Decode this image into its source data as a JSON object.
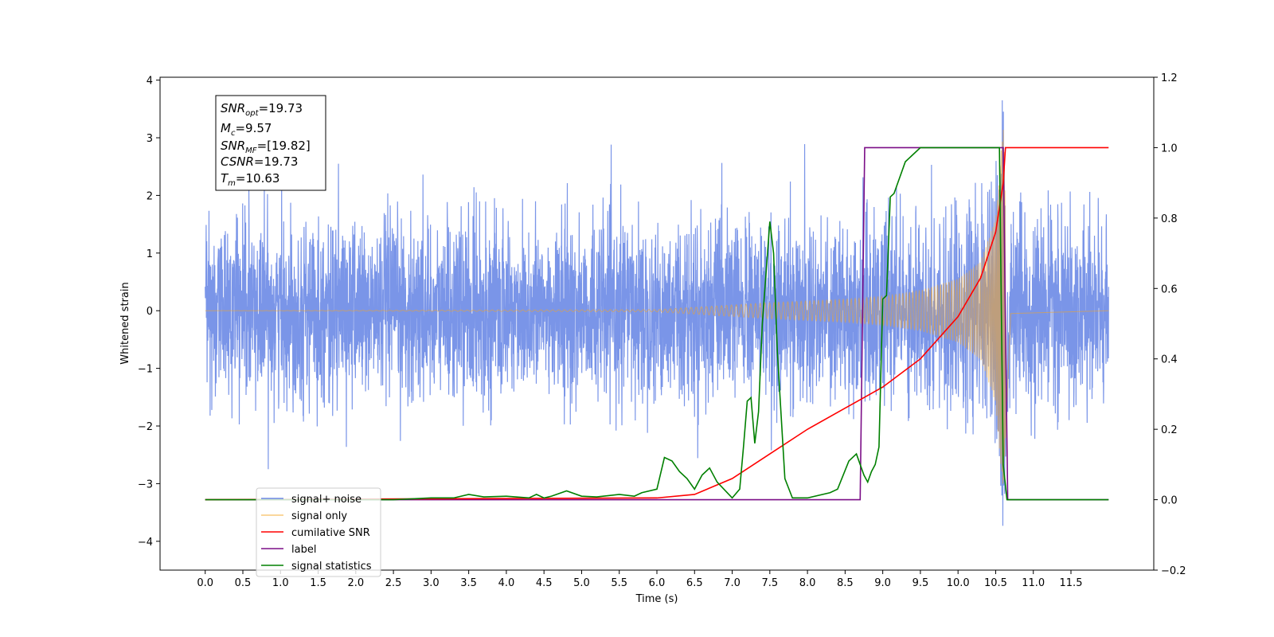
{
  "chart_data": {
    "type": "line",
    "xlabel": "Time (s)",
    "ylabel": "Whitened strain",
    "xlim": [
      -0.6,
      12.6
    ],
    "ylim": [
      -4.5,
      4.05
    ],
    "y2lim": [
      -0.2,
      1.2
    ],
    "x_ticks": [
      0.0,
      0.5,
      1.0,
      1.5,
      2.0,
      2.5,
      3.0,
      3.5,
      4.0,
      4.5,
      5.0,
      5.5,
      6.0,
      6.5,
      7.0,
      7.5,
      8.0,
      8.5,
      9.0,
      9.5,
      10.0,
      10.5,
      11.0,
      11.5
    ],
    "x_tick_labels": [
      "0.0",
      "0.5",
      "1.0",
      "1.5",
      "2.0",
      "2.5",
      "3.0",
      "3.5",
      "4.0",
      "4.5",
      "5.0",
      "5.5",
      "6.0",
      "6.5",
      "7.0",
      "7.5",
      "8.0",
      "8.5",
      "9.0",
      "9.5",
      "10.0",
      "10.5",
      "11.0",
      "11.5"
    ],
    "y_ticks": [
      4,
      3,
      2,
      1,
      0,
      -1,
      -2,
      -3,
      -4
    ],
    "y_tick_labels": [
      "4",
      "3",
      "2",
      "1",
      "0",
      "−1",
      "−2",
      "−3",
      "−4"
    ],
    "y2_ticks": [
      1.2,
      1.0,
      0.8,
      0.6,
      0.4,
      0.2,
      0.0,
      -0.2
    ],
    "y2_tick_labels": [
      "1.2",
      "1.0",
      "0.8",
      "0.6",
      "0.4",
      "0.2",
      "0.0",
      "−0.2"
    ],
    "legend_position": "lower-left",
    "series": [
      {
        "name": "signal+ noise",
        "color": "#6b8ae6",
        "axis": "left",
        "x_range": [
          0.0,
          12.0
        ],
        "noise_sigma": 0.75,
        "approx_y_range": [
          -4.1,
          3.65
        ]
      },
      {
        "name": "signal only",
        "color": "#f5a623",
        "axis": "left",
        "merger_time": 10.63,
        "envelope": [
          [
            0.0,
            0.0
          ],
          [
            6.0,
            0.02
          ],
          [
            6.5,
            0.06
          ],
          [
            7.0,
            0.1
          ],
          [
            7.5,
            0.14
          ],
          [
            8.0,
            0.17
          ],
          [
            8.5,
            0.2
          ],
          [
            9.0,
            0.25
          ],
          [
            9.5,
            0.35
          ],
          [
            10.0,
            0.55
          ],
          [
            10.3,
            0.85
          ],
          [
            10.5,
            1.6
          ],
          [
            10.6,
            3.2
          ],
          [
            10.7,
            0.05
          ],
          [
            12.0,
            0.0
          ]
        ]
      },
      {
        "name": "cumilative SNR",
        "color": "#ff0000",
        "axis": "right",
        "x": [
          0.0,
          6.0,
          6.5,
          7.0,
          7.5,
          8.0,
          8.5,
          9.0,
          9.5,
          10.0,
          10.3,
          10.5,
          10.6,
          10.63,
          12.0
        ],
        "y": [
          0.0,
          0.005,
          0.015,
          0.06,
          0.13,
          0.2,
          0.26,
          0.32,
          0.4,
          0.52,
          0.63,
          0.76,
          0.9,
          1.0,
          1.0
        ]
      },
      {
        "name": "label",
        "color": "#7b0e87",
        "axis": "right",
        "x": [
          0.0,
          8.7,
          8.76,
          10.6,
          10.66,
          12.0
        ],
        "y": [
          0.0,
          0.0,
          1.0,
          1.0,
          0.0,
          0.0
        ]
      },
      {
        "name": "signal statistics",
        "color": "#008000",
        "axis": "right",
        "x": [
          0.0,
          2.5,
          3.0,
          3.3,
          3.5,
          3.7,
          4.0,
          4.3,
          4.4,
          4.5,
          4.6,
          4.8,
          5.0,
          5.2,
          5.5,
          5.7,
          5.8,
          6.0,
          6.1,
          6.2,
          6.3,
          6.4,
          6.5,
          6.6,
          6.7,
          6.8,
          7.0,
          7.1,
          7.15,
          7.2,
          7.25,
          7.3,
          7.35,
          7.4,
          7.5,
          7.55,
          7.6,
          7.7,
          7.8,
          8.0,
          8.3,
          8.4,
          8.55,
          8.65,
          8.75,
          8.8,
          8.85,
          8.9,
          8.95,
          9.0,
          9.05,
          9.1,
          9.15,
          9.2,
          9.3,
          9.4,
          9.5,
          9.7,
          10.0,
          10.35,
          10.55,
          10.6,
          10.65,
          10.7,
          12.0
        ],
        "y": [
          0.0,
          0.0,
          0.005,
          0.005,
          0.015,
          0.008,
          0.01,
          0.005,
          0.015,
          0.005,
          0.01,
          0.025,
          0.01,
          0.008,
          0.015,
          0.01,
          0.02,
          0.03,
          0.12,
          0.11,
          0.08,
          0.06,
          0.03,
          0.07,
          0.09,
          0.05,
          0.005,
          0.03,
          0.15,
          0.28,
          0.29,
          0.16,
          0.25,
          0.5,
          0.79,
          0.7,
          0.42,
          0.06,
          0.005,
          0.005,
          0.02,
          0.03,
          0.11,
          0.13,
          0.07,
          0.05,
          0.08,
          0.1,
          0.15,
          0.57,
          0.58,
          0.86,
          0.87,
          0.9,
          0.96,
          0.98,
          1.0,
          1.0,
          1.0,
          1.0,
          1.0,
          0.1,
          0.0,
          0.0,
          0.0
        ]
      }
    ],
    "annotations": [
      {
        "base": "SNR",
        "sub": "opt",
        "value": "=19.73"
      },
      {
        "base": "M",
        "sub": "c",
        "value": "=9.57"
      },
      {
        "base": "SNR",
        "sub": "MF",
        "value": "=[19.82]"
      },
      {
        "base": "CSNR",
        "sub": "",
        "value": "=19.73"
      },
      {
        "base": "T",
        "sub": "m",
        "value": "=10.63"
      }
    ]
  }
}
